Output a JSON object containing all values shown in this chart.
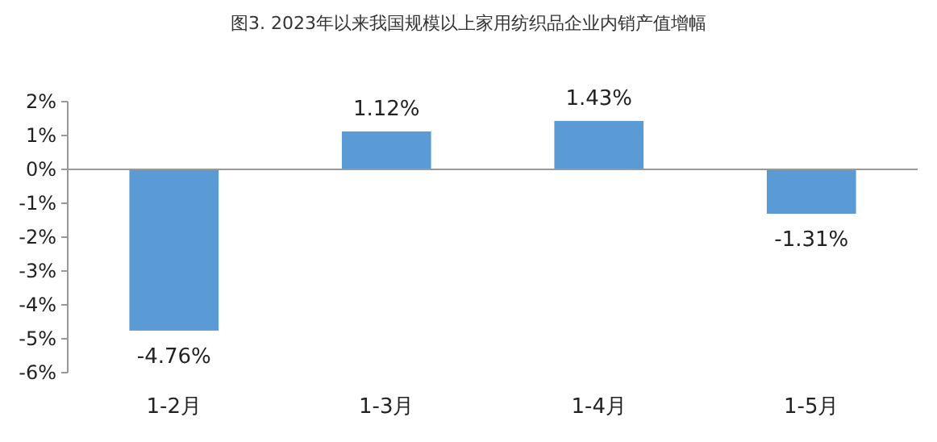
{
  "chart_data": {
    "type": "bar",
    "title": "图3. 2023年以来我国规模以上家用纺织品企业内销产值增幅",
    "categories": [
      "1-2月",
      "1-3月",
      "1-4月",
      "1-5月"
    ],
    "values": [
      -4.76,
      1.12,
      1.43,
      -1.31
    ],
    "value_labels": [
      "-4.76%",
      "1.12%",
      "1.43%",
      "-1.31%"
    ],
    "color": "#5b9bd5",
    "ylim": [
      -6,
      2
    ],
    "yticks": [
      {
        "value": 2,
        "label": "2%"
      },
      {
        "value": 1,
        "label": "1%"
      },
      {
        "value": 0,
        "label": "0%"
      },
      {
        "value": -1,
        "label": "-1%"
      },
      {
        "value": -2,
        "label": "-2%"
      },
      {
        "value": -3,
        "label": "-3%"
      },
      {
        "value": -4,
        "label": "-4%"
      },
      {
        "value": -5,
        "label": "-5%"
      },
      {
        "value": -6,
        "label": "-6%"
      }
    ]
  }
}
